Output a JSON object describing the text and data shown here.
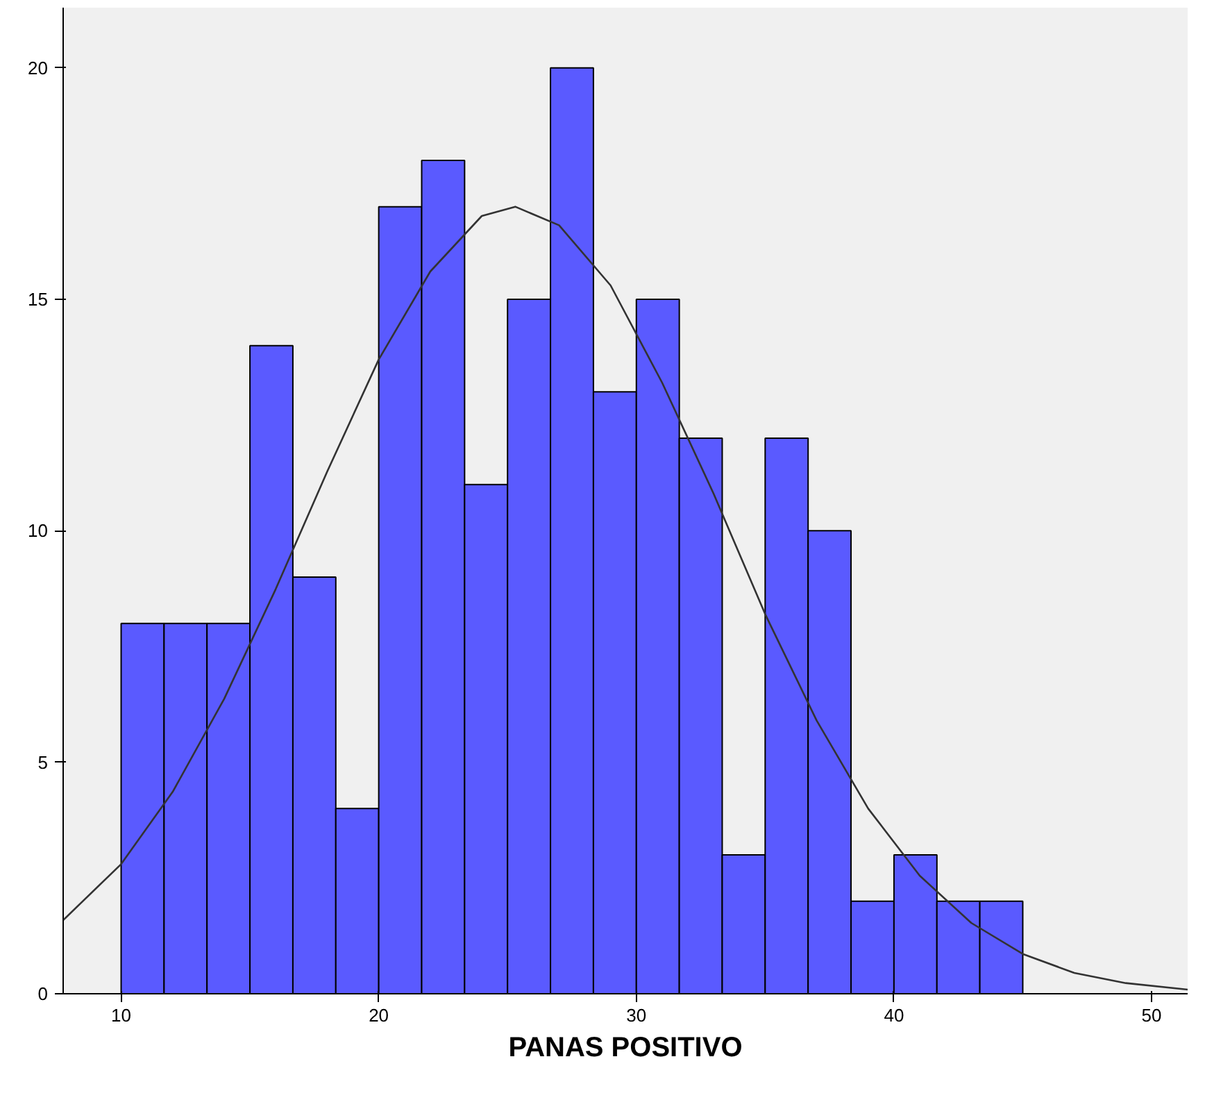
{
  "chart_data": {
    "type": "histogram",
    "xlabel": "PANAS POSITIVO",
    "bins": [
      10,
      11.667,
      13.333,
      15,
      16.667,
      18.333,
      20,
      21.667,
      23.333,
      25,
      26.667,
      28.333,
      30,
      31.667,
      33.333,
      35,
      36.667,
      38.333,
      40,
      41.667,
      43.333,
      45
    ],
    "values": [
      8,
      8,
      8,
      14,
      9,
      4,
      17,
      18,
      11,
      15,
      20,
      13,
      15,
      12,
      3,
      12,
      10,
      2,
      3,
      2,
      2
    ],
    "color": "#5a5aff",
    "series": [
      {
        "type": "line",
        "color": "#333333",
        "x": [
          7.75,
          10,
          12,
          14,
          16,
          18,
          20,
          22,
          24,
          25.3,
          27,
          29,
          31,
          33,
          35,
          37,
          39,
          41,
          43,
          45,
          47,
          49,
          51.4
        ],
        "values": [
          1.59,
          2.8,
          4.36,
          6.37,
          8.74,
          11.28,
          13.7,
          15.6,
          16.8,
          17,
          16.6,
          15.3,
          13.2,
          10.8,
          8.2,
          5.9,
          4.0,
          2.55,
          1.53,
          0.86,
          0.45,
          0.23,
          0.09
        ]
      }
    ],
    "xlim": [
      7.75,
      51.4
    ],
    "xticks": [
      10,
      20,
      30,
      40,
      50
    ],
    "ylim": [
      0,
      21.3
    ],
    "yticks": [
      0,
      5,
      10,
      15,
      20
    ],
    "grid": false
  }
}
